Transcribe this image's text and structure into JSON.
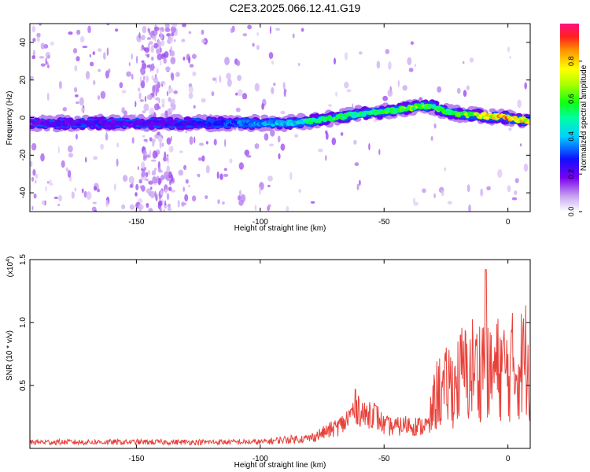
{
  "title": "C2E3.2025.066.12.41.G19",
  "chart_data": [
    {
      "type": "heatmap",
      "xlabel": "Height of straight line (km)",
      "ylabel": "Frequency (Hz)",
      "xlim": [
        -193,
        9
      ],
      "ylim": [
        -50,
        50
      ],
      "xticks": [
        -150,
        -100,
        -50,
        0
      ],
      "yticks": [
        -40,
        -20,
        0,
        20,
        40
      ],
      "colorbar": {
        "label": "Normalized spectral amplitude",
        "range": [
          0,
          1
        ],
        "ticks": [
          "0.0",
          "0.2",
          "0.4",
          "0.6",
          "0.8"
        ]
      },
      "ridge": {
        "x": [
          -193,
          -170,
          -150,
          -130,
          -110,
          -90,
          -80,
          -70,
          -60,
          -50,
          -40,
          -35,
          -30,
          -25,
          -20,
          -10,
          0,
          9
        ],
        "frequency": [
          -3,
          -3,
          -3,
          -3,
          -3,
          -3,
          -2,
          0,
          2,
          3,
          5,
          6,
          6,
          3,
          2,
          1,
          0,
          -2
        ],
        "amplitude": [
          0.2,
          0.25,
          0.22,
          0.25,
          0.35,
          0.45,
          0.55,
          0.6,
          0.55,
          0.6,
          0.65,
          0.7,
          0.62,
          0.6,
          0.65,
          0.78,
          0.9,
          0.75
        ]
      },
      "grid": false
    },
    {
      "type": "line",
      "xlabel": "Height of straight line (km)",
      "ylabel": "SNR (10 * v/v)",
      "y_multiplier": "(x10",
      "y_multiplier_exp": "4",
      "xlim": [
        -193,
        9
      ],
      "ylim": [
        0,
        1.5
      ],
      "xticks": [
        -150,
        -100,
        -50,
        0
      ],
      "yticks": [
        "0.5",
        "1.0",
        "1.5"
      ],
      "series": [
        {
          "color": "#e8413a",
          "x": [
            -193,
            -180,
            -160,
            -140,
            -120,
            -100,
            -90,
            -80,
            -75,
            -70,
            -66,
            -63,
            -61,
            -58,
            -55,
            -50,
            -45,
            -40,
            -35,
            -32,
            -30,
            -28,
            -26,
            -24,
            -22,
            -20,
            -18,
            -16,
            -14,
            -12,
            -10,
            -9,
            -8,
            -6,
            -4,
            -2,
            0,
            2,
            4,
            6,
            8,
            9
          ],
          "y": [
            0.05,
            0.05,
            0.05,
            0.05,
            0.05,
            0.05,
            0.07,
            0.08,
            0.12,
            0.16,
            0.2,
            0.28,
            0.35,
            0.25,
            0.3,
            0.18,
            0.17,
            0.19,
            0.17,
            0.22,
            0.45,
            0.6,
            0.55,
            0.68,
            0.62,
            0.7,
            0.8,
            0.72,
            0.85,
            0.78,
            0.9,
            1.42,
            0.7,
            0.78,
            0.82,
            0.84,
            0.76,
            0.85,
            0.8,
            0.9,
            0.95,
            0.82
          ]
        }
      ]
    }
  ]
}
